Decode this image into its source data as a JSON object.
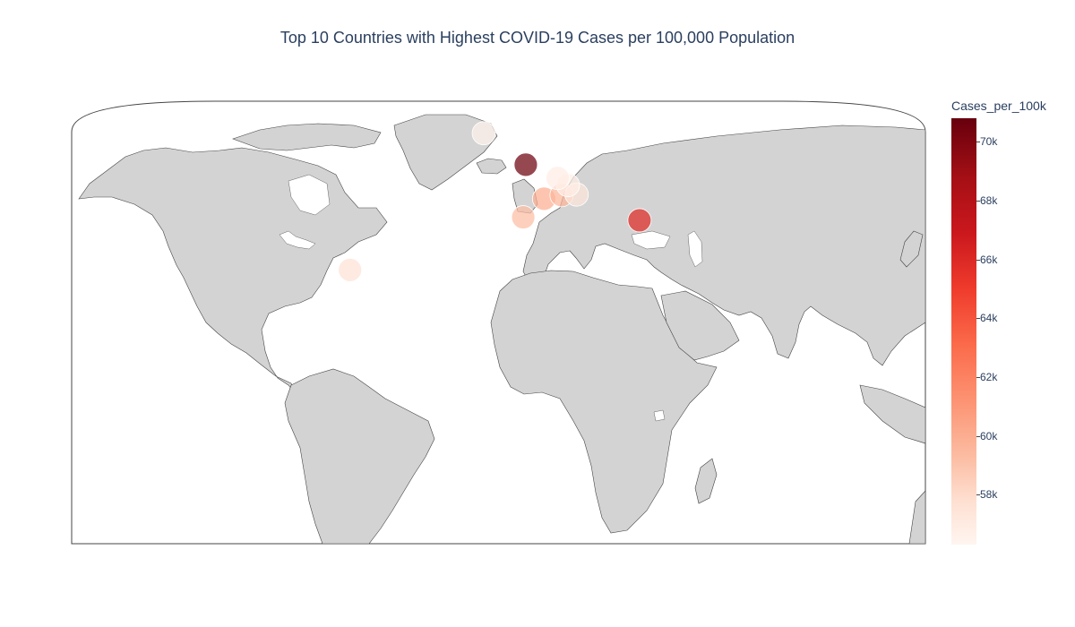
{
  "title": "Top 10 Countries with Highest COVID-19 Cases per 100,000 Population",
  "colorbar": {
    "title": "Cases_per_100k",
    "ticks": [
      "70k",
      "68k",
      "66k",
      "64k",
      "62k",
      "60k",
      "58k"
    ],
    "tick_values": [
      70000,
      68000,
      66000,
      64000,
      62000,
      60000,
      58000
    ],
    "range": [
      56300,
      70800
    ],
    "colorscale": [
      "#fff5f0",
      "#fee0d2",
      "#fcbba1",
      "#fc9272",
      "#fb6a4a",
      "#ef3b2c",
      "#cb181d",
      "#a50f15",
      "#67000d"
    ]
  },
  "map": {
    "land_color": "#d3d3d3",
    "ocean_color": "#ffffff",
    "border_color": "#444444"
  },
  "chart_data": {
    "type": "scatter",
    "geo": "bubble-map",
    "projection": "natural-earth",
    "title": "Top 10 Countries with Highest COVID-19 Cases per 100,000 Population",
    "color_variable": "Cases_per_100k",
    "points": [
      {
        "lon": -4.5,
        "lat": 54.2,
        "value": 70600
      },
      {
        "lon": 33.4,
        "lat": 35.1,
        "value": 66200
      },
      {
        "lon": 1.6,
        "lat": 42.5,
        "value": 60500
      },
      {
        "lon": -5.35,
        "lat": 36.14,
        "value": 59800
      },
      {
        "lon": 7.42,
        "lat": 43.74,
        "value": 60200
      },
      {
        "lon": 12.46,
        "lat": 43.94,
        "value": 57600
      },
      {
        "lon": 9.55,
        "lat": 47.17,
        "value": 56800
      },
      {
        "lon": 6.13,
        "lat": 49.61,
        "value": 57000
      },
      {
        "lon": -63.07,
        "lat": 18.04,
        "value": 57900
      },
      {
        "lon": -18.5,
        "lat": 65.0,
        "value": 56600
      }
    ]
  }
}
